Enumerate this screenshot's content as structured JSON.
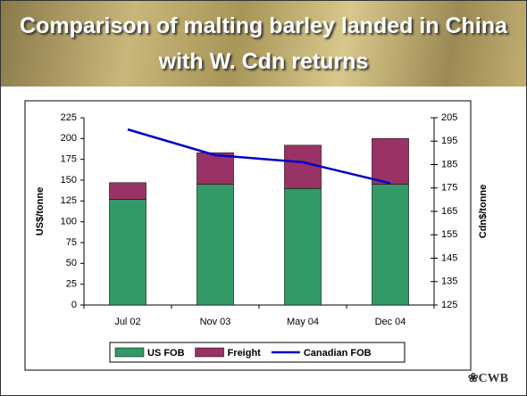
{
  "chart_data": {
    "type": "bar",
    "stacked": true,
    "title": "Comparison of malting barley landed in China with W. Cdn returns",
    "categories": [
      "Jul 02",
      "Nov 03",
      "May 04",
      "Dec 04"
    ],
    "series": [
      {
        "name": "US FOB",
        "color": "#339966",
        "values": [
          127,
          145,
          140,
          145
        ]
      },
      {
        "name": "Freight",
        "color": "#993366",
        "values": [
          20,
          38,
          52,
          55
        ]
      },
      {
        "name": "Canadian FOB",
        "color": "#0000cc",
        "type": "line",
        "axis": "y2",
        "values": [
          200,
          189,
          186,
          177
        ]
      }
    ],
    "ylabel": "US$/tonne",
    "y2label": "Cdn$/tonne",
    "ylim": [
      0,
      225
    ],
    "yticks": [
      0,
      25,
      50,
      75,
      100,
      125,
      150,
      175,
      200,
      225
    ],
    "y2lim": [
      125,
      205
    ],
    "y2ticks": [
      125,
      135,
      145,
      155,
      165,
      175,
      185,
      195,
      205
    ],
    "legend": "bottom"
  },
  "logo": "CWB"
}
